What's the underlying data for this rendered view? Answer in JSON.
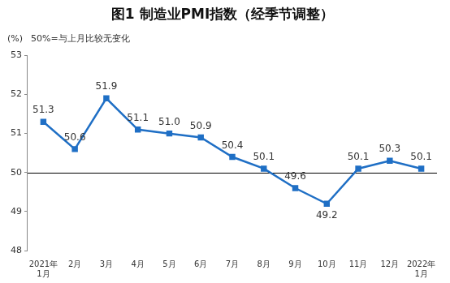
{
  "chart_data": {
    "type": "line",
    "title": "图1 制造业PMI指数（经季节调整）",
    "ylabel": "(%)",
    "annotation": "50%=与上月比较无变化",
    "categories": [
      "2021年\n1月",
      "2月",
      "3月",
      "4月",
      "5月",
      "6月",
      "7月",
      "8月",
      "9月",
      "10月",
      "11月",
      "12月",
      "2022年\n1月"
    ],
    "values": [
      51.3,
      50.6,
      51.9,
      51.1,
      51.0,
      50.9,
      50.4,
      50.1,
      49.6,
      49.2,
      50.1,
      50.3,
      50.1
    ],
    "value_labels": [
      "51.3",
      "50.6",
      "51.9",
      "51.1",
      "51.0",
      "50.9",
      "50.4",
      "50.1",
      "49.6",
      "49.2",
      "50.1",
      "50.3",
      "50.1"
    ],
    "color": "#1f6fc5",
    "marker": "square",
    "ylim": [
      48,
      53
    ],
    "yticks": [
      48,
      49,
      50,
      51,
      52,
      53
    ],
    "grid": false,
    "reference_line": 50,
    "data_labels": true
  }
}
